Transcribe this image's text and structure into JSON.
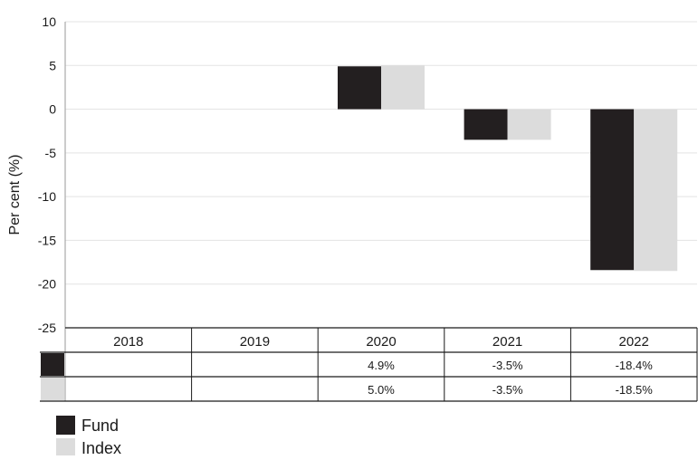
{
  "chart_data": {
    "type": "bar",
    "ylabel": "Per cent (%)",
    "ylim": [
      -25,
      10
    ],
    "yticks": [
      10,
      5,
      0,
      -5,
      -10,
      -15,
      -20,
      -25
    ],
    "grid": true,
    "legend_position": "bottom-left",
    "categories": [
      "2018",
      "2019",
      "2020",
      "2021",
      "2022"
    ],
    "series": [
      {
        "name": "Fund",
        "color": "#231f20",
        "values": [
          null,
          null,
          4.9,
          -3.5,
          -18.4
        ],
        "labels": [
          "",
          "",
          "4.9%",
          "-3.5%",
          "-18.4%"
        ]
      },
      {
        "name": "Index",
        "color": "#dcdcdc",
        "values": [
          null,
          null,
          5.0,
          -3.5,
          -18.5
        ],
        "labels": [
          "",
          "",
          "5.0%",
          "-3.5%",
          "-18.5%"
        ]
      }
    ]
  }
}
